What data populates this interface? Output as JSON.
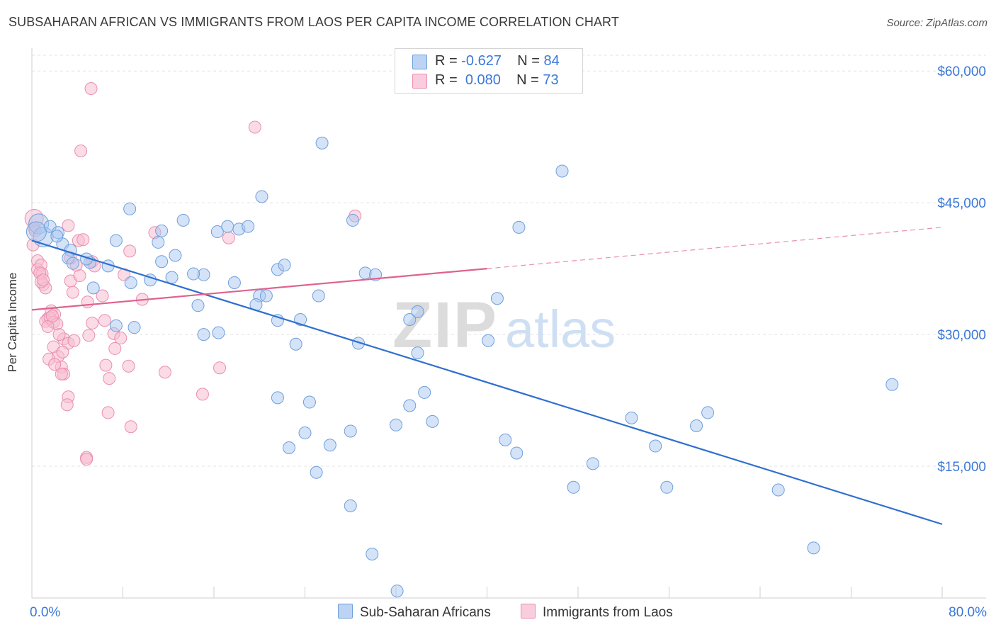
{
  "header": {
    "title": "SUBSAHARAN AFRICAN VS IMMIGRANTS FROM LAOS PER CAPITA INCOME CORRELATION CHART",
    "source": "Source: ZipAtlas.com"
  },
  "legend_top": {
    "rows": [
      {
        "r_label": "R =",
        "r_value": "-0.627",
        "n_label": "N =",
        "n_value": "84"
      },
      {
        "r_label": "R =",
        "r_value": "0.080",
        "n_label": "N =",
        "n_value": "73"
      }
    ]
  },
  "watermark": {
    "part1": "ZIP",
    "part2": "atlas"
  },
  "colors": {
    "blue_fill": "#a9c7f0",
    "blue_stroke": "#6f9fdc",
    "blue_line": "#2f6fcf",
    "pink_fill": "#f7bdd0",
    "pink_stroke": "#ea8eb0",
    "pink_line": "#e0618f",
    "axis_text": "#3a78d8",
    "grid": "#e3e3e3"
  },
  "chart_data": {
    "type": "scatter",
    "title": "SUBSAHARAN AFRICAN VS IMMIGRANTS FROM LAOS PER CAPITA INCOME CORRELATION CHART",
    "xlabel": "",
    "ylabel": "Per Capita Income",
    "xlim": [
      0,
      80
    ],
    "ylim": [
      0,
      63000
    ],
    "x_tick_labels": [
      "0.0%",
      "80.0%"
    ],
    "y_ticks": [
      15000,
      30000,
      45000,
      60000
    ],
    "y_tick_labels": [
      "$15,000",
      "$30,000",
      "$45,000",
      "$60,000"
    ],
    "grid": true,
    "legend_position": "bottom",
    "series": [
      {
        "name": "Sub-Saharan Africans",
        "color": "#a9c7f0",
        "R": -0.627,
        "N": 84,
        "trend": {
          "x": [
            0,
            80
          ],
          "y": [
            40700,
            8400
          ],
          "dashed_from": null
        },
        "points": [
          [
            0.6,
            42600
          ],
          [
            1.0,
            41100
          ],
          [
            0.4,
            41700
          ],
          [
            1.6,
            42300
          ],
          [
            2.3,
            41600
          ],
          [
            2.7,
            40300
          ],
          [
            3.4,
            39600
          ],
          [
            5.1,
            38200
          ],
          [
            3.2,
            38700
          ],
          [
            5.4,
            35300
          ],
          [
            7.4,
            40700
          ],
          [
            8.6,
            44300
          ],
          [
            11.1,
            40500
          ],
          [
            11.4,
            41800
          ],
          [
            12.3,
            36500
          ],
          [
            12.6,
            39000
          ],
          [
            13.3,
            43000
          ],
          [
            15.1,
            36800
          ],
          [
            16.3,
            41700
          ],
          [
            17.2,
            42300
          ],
          [
            18.2,
            42000
          ],
          [
            17.8,
            35900
          ],
          [
            19.0,
            42300
          ],
          [
            20.0,
            34400
          ],
          [
            19.7,
            33400
          ],
          [
            20.6,
            34400
          ],
          [
            21.6,
            37400
          ],
          [
            20.2,
            45700
          ],
          [
            22.2,
            37900
          ],
          [
            21.6,
            31600
          ],
          [
            23.6,
            31700
          ],
          [
            23.2,
            28900
          ],
          [
            25.2,
            34400
          ],
          [
            25.5,
            51800
          ],
          [
            28.2,
            43000
          ],
          [
            29.3,
            37000
          ],
          [
            30.2,
            36800
          ],
          [
            28.7,
            29000
          ],
          [
            33.2,
            31700
          ],
          [
            33.9,
            32600
          ],
          [
            33.9,
            27900
          ],
          [
            40.9,
            34100
          ],
          [
            40.1,
            29300
          ],
          [
            42.8,
            42200
          ],
          [
            46.6,
            48600
          ],
          [
            10.4,
            36200
          ],
          [
            11.4,
            38300
          ],
          [
            9.0,
            30800
          ],
          [
            8.7,
            35900
          ],
          [
            7.4,
            31000
          ],
          [
            14.2,
            36900
          ],
          [
            14.6,
            33300
          ],
          [
            15.1,
            30000
          ],
          [
            16.4,
            30200
          ],
          [
            21.6,
            22800
          ],
          [
            24.4,
            22300
          ],
          [
            22.6,
            17100
          ],
          [
            24.0,
            18800
          ],
          [
            26.2,
            17400
          ],
          [
            25.0,
            14300
          ],
          [
            28.0,
            19000
          ],
          [
            32.0,
            19700
          ],
          [
            33.2,
            21900
          ],
          [
            34.5,
            23400
          ],
          [
            35.2,
            20100
          ],
          [
            28.0,
            10500
          ],
          [
            29.9,
            5000
          ],
          [
            32.1,
            800
          ],
          [
            41.6,
            18000
          ],
          [
            42.6,
            16500
          ],
          [
            47.6,
            12600
          ],
          [
            49.3,
            15300
          ],
          [
            52.7,
            20500
          ],
          [
            54.8,
            17300
          ],
          [
            55.8,
            12600
          ],
          [
            58.4,
            19600
          ],
          [
            59.4,
            21100
          ],
          [
            65.6,
            12300
          ],
          [
            68.7,
            5700
          ],
          [
            75.6,
            24300
          ],
          [
            4.8,
            38600
          ],
          [
            6.7,
            37800
          ],
          [
            2.2,
            41200
          ],
          [
            3.6,
            38100
          ]
        ]
      },
      {
        "name": "Immigrants from Laos",
        "color": "#f7bdd0",
        "R": 0.08,
        "N": 73,
        "trend": {
          "x": [
            0,
            80
          ],
          "y": [
            32800,
            42200
          ],
          "solid_until_x": 40
        },
        "points": [
          [
            0.2,
            43200
          ],
          [
            0.2,
            42100
          ],
          [
            0.1,
            40200
          ],
          [
            0.5,
            38400
          ],
          [
            0.5,
            37400
          ],
          [
            0.8,
            37900
          ],
          [
            0.9,
            36900
          ],
          [
            1.0,
            35700
          ],
          [
            1.2,
            35300
          ],
          [
            0.7,
            37000
          ],
          [
            0.8,
            36000
          ],
          [
            1.4,
            31800
          ],
          [
            1.2,
            31500
          ],
          [
            1.7,
            32700
          ],
          [
            2.0,
            32300
          ],
          [
            1.6,
            31900
          ],
          [
            1.9,
            31400
          ],
          [
            2.2,
            31200
          ],
          [
            1.4,
            30900
          ],
          [
            1.9,
            28600
          ],
          [
            2.3,
            27500
          ],
          [
            2.8,
            29500
          ],
          [
            3.2,
            29000
          ],
          [
            2.7,
            28000
          ],
          [
            1.5,
            27200
          ],
          [
            2.6,
            26300
          ],
          [
            2.8,
            25500
          ],
          [
            3.7,
            29300
          ],
          [
            3.2,
            22900
          ],
          [
            3.1,
            22000
          ],
          [
            2.6,
            25500
          ],
          [
            2.0,
            26600
          ],
          [
            3.4,
            36100
          ],
          [
            4.2,
            36700
          ],
          [
            3.9,
            37900
          ],
          [
            3.6,
            34800
          ],
          [
            4.1,
            40700
          ],
          [
            4.5,
            40800
          ],
          [
            3.2,
            42400
          ],
          [
            5.3,
            38300
          ],
          [
            5.5,
            37800
          ],
          [
            4.9,
            33700
          ],
          [
            5.3,
            31300
          ],
          [
            6.2,
            34400
          ],
          [
            6.4,
            31600
          ],
          [
            6.5,
            26500
          ],
          [
            6.8,
            25000
          ],
          [
            6.7,
            21100
          ],
          [
            7.2,
            30100
          ],
          [
            7.3,
            28400
          ],
          [
            7.8,
            29600
          ],
          [
            8.1,
            36800
          ],
          [
            8.6,
            39500
          ],
          [
            8.5,
            26400
          ],
          [
            8.7,
            19500
          ],
          [
            9.7,
            34000
          ],
          [
            10.8,
            41600
          ],
          [
            11.7,
            25700
          ],
          [
            15.0,
            23200
          ],
          [
            16.5,
            26200
          ],
          [
            17.3,
            41000
          ],
          [
            19.6,
            53600
          ],
          [
            28.4,
            43500
          ],
          [
            5.2,
            58000
          ],
          [
            4.3,
            50900
          ],
          [
            4.8,
            16000
          ],
          [
            4.8,
            15800
          ],
          [
            0.3,
            41800
          ],
          [
            1.0,
            36200
          ],
          [
            3.4,
            38700
          ],
          [
            5.0,
            29900
          ],
          [
            2.4,
            30000
          ],
          [
            1.8,
            32100
          ]
        ]
      }
    ]
  },
  "bottom_legend": {
    "items": [
      "Sub-Saharan Africans",
      "Immigrants from Laos"
    ]
  }
}
